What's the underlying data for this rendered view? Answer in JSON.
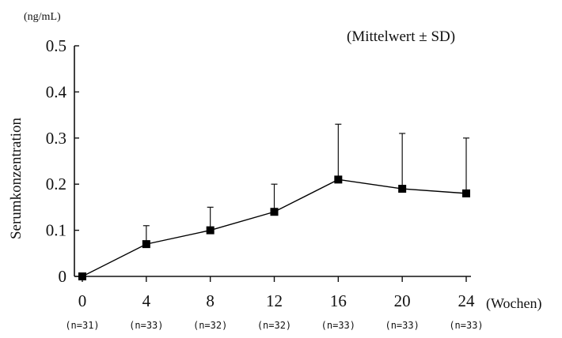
{
  "chart_data": {
    "type": "line",
    "title": "",
    "annotation": "(Mittelwert ± SD)",
    "ylabel": "Serumkonzentration",
    "yunit": "(ng/mL)",
    "xunit": "(Wochen)",
    "ylim": [
      0,
      0.5
    ],
    "yticks": [
      "0",
      "0.1",
      "0.2",
      "0.3",
      "0.4",
      "0.5"
    ],
    "ytick_values": [
      0,
      0.1,
      0.2,
      0.3,
      0.4,
      0.5
    ],
    "x": [
      0,
      4,
      8,
      12,
      16,
      20,
      24
    ],
    "x_tick_labels": [
      "0",
      "4",
      "8",
      "12",
      "16",
      "20",
      "24"
    ],
    "n_labels": [
      "(n=31)",
      "(n=33)",
      "(n=32)",
      "(n=32)",
      "(n=33)",
      "(n=33)",
      "(n=33)"
    ],
    "series": [
      {
        "values": [
          0.0,
          0.07,
          0.1,
          0.14,
          0.21,
          0.19,
          0.18
        ],
        "sd": [
          0.0,
          0.04,
          0.05,
          0.06,
          0.12,
          0.12,
          0.12
        ],
        "color": "#000000",
        "marker": "square"
      }
    ],
    "error_bars": "upper-only",
    "grid": false,
    "legend": "none"
  }
}
